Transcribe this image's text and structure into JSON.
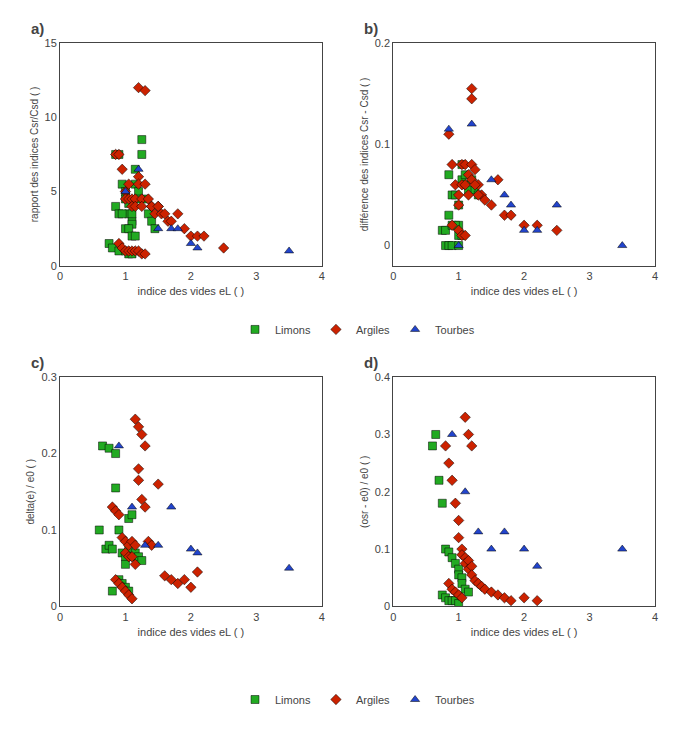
{
  "chart_data": [
    {
      "type": "scatter",
      "title": "a)",
      "x_label": "indice des vides eL ( )",
      "y_label": "rapport des indices Csr/Csd ( )",
      "xlim": [
        0,
        4
      ],
      "xticks": [
        0,
        1,
        2,
        3,
        4
      ],
      "ylim": [
        0,
        15
      ],
      "yticks": [
        0,
        5,
        10,
        15
      ],
      "grid": false,
      "series": [
        {
          "name": "Limons",
          "color": "#22aa22",
          "marker": "square",
          "x": [
            0.75,
            0.85,
            0.9,
            0.95,
            1.0,
            1.0,
            1.05,
            1.05,
            1.1,
            1.1,
            1.1,
            1.15,
            1.15,
            1.2,
            1.2,
            1.25,
            1.25,
            1.3,
            1.35,
            1.4,
            1.45,
            0.85,
            0.9,
            0.95,
            1.0,
            1.05,
            1.1,
            1.15,
            0.8,
            0.9,
            1.0,
            1.05,
            1.1
          ],
          "values": [
            1.5,
            7.5,
            7.5,
            5.5,
            5.0,
            4.5,
            4.2,
            3.5,
            3.0,
            3.5,
            2.8,
            6.5,
            5.5,
            5.0,
            4.5,
            8.5,
            7.5,
            4.5,
            3.5,
            3.0,
            2.5,
            4.0,
            3.5,
            3.5,
            2.5,
            2.5,
            2.0,
            2.0,
            1.2,
            1.0,
            1.0,
            0.8,
            0.8
          ]
        },
        {
          "name": "Argiles",
          "color": "#cc2200",
          "marker": "diamond",
          "x": [
            0.85,
            0.9,
            0.95,
            1.0,
            1.0,
            1.05,
            1.05,
            1.1,
            1.1,
            1.15,
            1.15,
            1.2,
            1.2,
            1.25,
            1.25,
            1.3,
            1.35,
            1.4,
            1.45,
            1.5,
            1.55,
            1.6,
            1.65,
            1.7,
            1.8,
            1.9,
            2.0,
            2.1,
            2.2,
            2.5,
            1.2,
            1.3,
            1.4,
            1.5,
            0.9,
            0.95,
            1.0,
            1.05,
            1.1,
            1.15,
            1.2,
            1.25,
            1.3
          ],
          "values": [
            7.5,
            7.5,
            6.5,
            5.0,
            4.5,
            5.5,
            4.5,
            4.5,
            4.0,
            4.5,
            4.0,
            6.0,
            5.5,
            4.5,
            4.0,
            5.5,
            4.5,
            4.0,
            3.5,
            4.0,
            3.5,
            3.5,
            3.0,
            3.0,
            3.5,
            2.5,
            2.0,
            2.0,
            2.0,
            1.2,
            12.0,
            11.8,
            4.0,
            4.0,
            1.5,
            1.2,
            1.0,
            1.0,
            1.0,
            1.0,
            1.0,
            0.8,
            0.8
          ]
        },
        {
          "name": "Tourbes",
          "color": "#2244cc",
          "marker": "triangle-up",
          "x": [
            1.0,
            1.2,
            1.5,
            1.7,
            1.8,
            2.0,
            2.1,
            3.5
          ],
          "values": [
            5.0,
            6.5,
            2.5,
            2.5,
            2.5,
            1.5,
            1.2,
            1.0
          ]
        }
      ]
    },
    {
      "type": "scatter",
      "title": "b)",
      "x_label": "indice des vides eL ( )",
      "y_label": "différence des indices Csr - Csd ( )",
      "xlim": [
        0,
        4
      ],
      "xticks": [
        0,
        1,
        2,
        3,
        4
      ],
      "ylim": [
        -0.02,
        0.2
      ],
      "yticks": [
        0,
        0.1,
        0.2
      ],
      "grid": false,
      "series": [
        {
          "name": "Limons",
          "color": "#22aa22",
          "marker": "square",
          "x": [
            0.75,
            0.8,
            0.85,
            0.9,
            0.95,
            1.0,
            1.0,
            1.05,
            1.05,
            1.1,
            1.1,
            1.15,
            1.2,
            1.25,
            1.3,
            0.85,
            0.9,
            0.95,
            1.0,
            1.05,
            0.8,
            0.85,
            0.9,
            1.0
          ],
          "values": [
            0.015,
            0.015,
            0.07,
            0.05,
            0.05,
            0.04,
            0.02,
            0.08,
            0.065,
            0.07,
            0.06,
            0.055,
            0.065,
            0.055,
            0.05,
            0.03,
            0.02,
            0.02,
            0.01,
            0.01,
            0.0,
            0.0,
            0.0,
            0.0
          ]
        },
        {
          "name": "Argiles",
          "color": "#cc2200",
          "marker": "diamond",
          "x": [
            0.85,
            0.9,
            0.95,
            1.0,
            1.0,
            1.05,
            1.05,
            1.1,
            1.1,
            1.15,
            1.15,
            1.2,
            1.2,
            1.25,
            1.3,
            1.35,
            1.4,
            1.5,
            1.6,
            1.7,
            1.8,
            2.0,
            2.2,
            2.5,
            1.2,
            1.2,
            1.25,
            1.3,
            0.9,
            1.0,
            1.05,
            1.1
          ],
          "values": [
            0.11,
            0.08,
            0.06,
            0.05,
            0.04,
            0.08,
            0.06,
            0.08,
            0.06,
            0.07,
            0.05,
            0.08,
            0.065,
            0.075,
            0.06,
            0.05,
            0.045,
            0.04,
            0.065,
            0.03,
            0.03,
            0.02,
            0.02,
            0.015,
            0.155,
            0.145,
            0.06,
            0.05,
            0.02,
            0.015,
            0.01,
            0.01
          ]
        },
        {
          "name": "Tourbes",
          "color": "#2244cc",
          "marker": "triangle-up",
          "x": [
            0.85,
            1.0,
            1.2,
            1.5,
            1.7,
            1.8,
            2.0,
            2.2,
            2.5,
            3.5
          ],
          "values": [
            0.115,
            0.0,
            0.12,
            0.065,
            0.05,
            0.04,
            0.015,
            0.015,
            0.04,
            0.0
          ]
        }
      ]
    },
    {
      "type": "scatter",
      "title": "c)",
      "x_label": "indice des vides eL ( )",
      "y_label": "delta(e) / e0 ( )",
      "xlim": [
        0,
        4
      ],
      "xticks": [
        0,
        1,
        2,
        3,
        4
      ],
      "ylim": [
        0,
        0.3
      ],
      "yticks": [
        0,
        0.1,
        0.2,
        0.3
      ],
      "grid": false,
      "series": [
        {
          "name": "Limons",
          "color": "#22aa22",
          "marker": "square",
          "x": [
            0.6,
            0.7,
            0.75,
            0.8,
            0.85,
            0.9,
            0.95,
            1.0,
            1.0,
            1.05,
            1.05,
            1.1,
            1.1,
            1.15,
            1.2,
            1.25,
            0.65,
            0.75,
            0.85,
            0.9,
            0.95,
            1.0,
            1.05,
            0.8
          ],
          "values": [
            0.1,
            0.075,
            0.08,
            0.075,
            0.155,
            0.1,
            0.07,
            0.065,
            0.055,
            0.115,
            0.075,
            0.12,
            0.065,
            0.07,
            0.065,
            0.06,
            0.21,
            0.207,
            0.2,
            0.035,
            0.03,
            0.025,
            0.02,
            0.02
          ]
        },
        {
          "name": "Argiles",
          "color": "#cc2200",
          "marker": "diamond",
          "x": [
            0.8,
            0.85,
            0.9,
            0.95,
            1.0,
            1.0,
            1.05,
            1.05,
            1.1,
            1.1,
            1.15,
            1.15,
            1.2,
            1.2,
            1.25,
            1.3,
            1.35,
            1.4,
            1.5,
            1.6,
            1.7,
            1.8,
            1.9,
            2.0,
            2.1,
            1.15,
            1.2,
            1.25,
            1.3,
            0.85,
            0.9,
            0.95,
            1.0,
            1.05,
            1.1
          ],
          "values": [
            0.13,
            0.125,
            0.12,
            0.09,
            0.085,
            0.07,
            0.08,
            0.065,
            0.085,
            0.065,
            0.08,
            0.055,
            0.18,
            0.165,
            0.14,
            0.13,
            0.085,
            0.08,
            0.16,
            0.04,
            0.035,
            0.03,
            0.035,
            0.025,
            0.045,
            0.245,
            0.235,
            0.225,
            0.21,
            0.035,
            0.03,
            0.025,
            0.02,
            0.015,
            0.01
          ]
        },
        {
          "name": "Tourbes",
          "color": "#2244cc",
          "marker": "triangle-up",
          "x": [
            0.9,
            1.1,
            1.3,
            1.5,
            1.7,
            2.0,
            2.1,
            3.5
          ],
          "values": [
            0.21,
            0.13,
            0.08,
            0.08,
            0.13,
            0.075,
            0.07,
            0.05
          ]
        }
      ]
    },
    {
      "type": "scatter",
      "title": "d)",
      "x_label": "indice des vides eL ( )",
      "y_label": "(osr - e0) / e0 ( )",
      "xlim": [
        0,
        4
      ],
      "xticks": [
        0,
        1,
        2,
        3,
        4
      ],
      "ylim": [
        0,
        0.4
      ],
      "yticks": [
        0,
        0.1,
        0.2,
        0.3,
        0.4
      ],
      "grid": false,
      "series": [
        {
          "name": "Limons",
          "color": "#22aa22",
          "marker": "square",
          "x": [
            0.6,
            0.65,
            0.7,
            0.75,
            0.8,
            0.85,
            0.9,
            0.95,
            1.0,
            1.0,
            1.05,
            1.05,
            1.1,
            1.15,
            0.75,
            0.8,
            0.85,
            0.9,
            0.95,
            1.0
          ],
          "values": [
            0.28,
            0.3,
            0.22,
            0.18,
            0.1,
            0.095,
            0.085,
            0.075,
            0.065,
            0.055,
            0.05,
            0.04,
            0.03,
            0.025,
            0.02,
            0.015,
            0.01,
            0.01,
            0.01,
            0.005
          ]
        },
        {
          "name": "Argiles",
          "color": "#cc2200",
          "marker": "diamond",
          "x": [
            0.8,
            0.85,
            0.9,
            0.95,
            1.0,
            1.0,
            1.05,
            1.05,
            1.1,
            1.1,
            1.15,
            1.15,
            1.2,
            1.2,
            1.25,
            1.3,
            1.35,
            1.4,
            1.5,
            1.6,
            1.7,
            1.8,
            2.0,
            2.2,
            1.1,
            1.15,
            1.2,
            0.85,
            0.9,
            0.95,
            1.0,
            1.05
          ],
          "values": [
            0.28,
            0.25,
            0.22,
            0.18,
            0.15,
            0.12,
            0.1,
            0.09,
            0.085,
            0.075,
            0.08,
            0.065,
            0.07,
            0.055,
            0.045,
            0.04,
            0.035,
            0.03,
            0.025,
            0.02,
            0.015,
            0.01,
            0.015,
            0.01,
            0.33,
            0.3,
            0.28,
            0.04,
            0.03,
            0.025,
            0.02,
            0.015
          ]
        },
        {
          "name": "Tourbes",
          "color": "#2244cc",
          "marker": "triangle-up",
          "x": [
            0.9,
            1.1,
            1.3,
            1.5,
            1.7,
            2.0,
            2.2,
            3.5
          ],
          "values": [
            0.3,
            0.2,
            0.13,
            0.1,
            0.13,
            0.1,
            0.07,
            0.1
          ]
        }
      ]
    }
  ]
}
